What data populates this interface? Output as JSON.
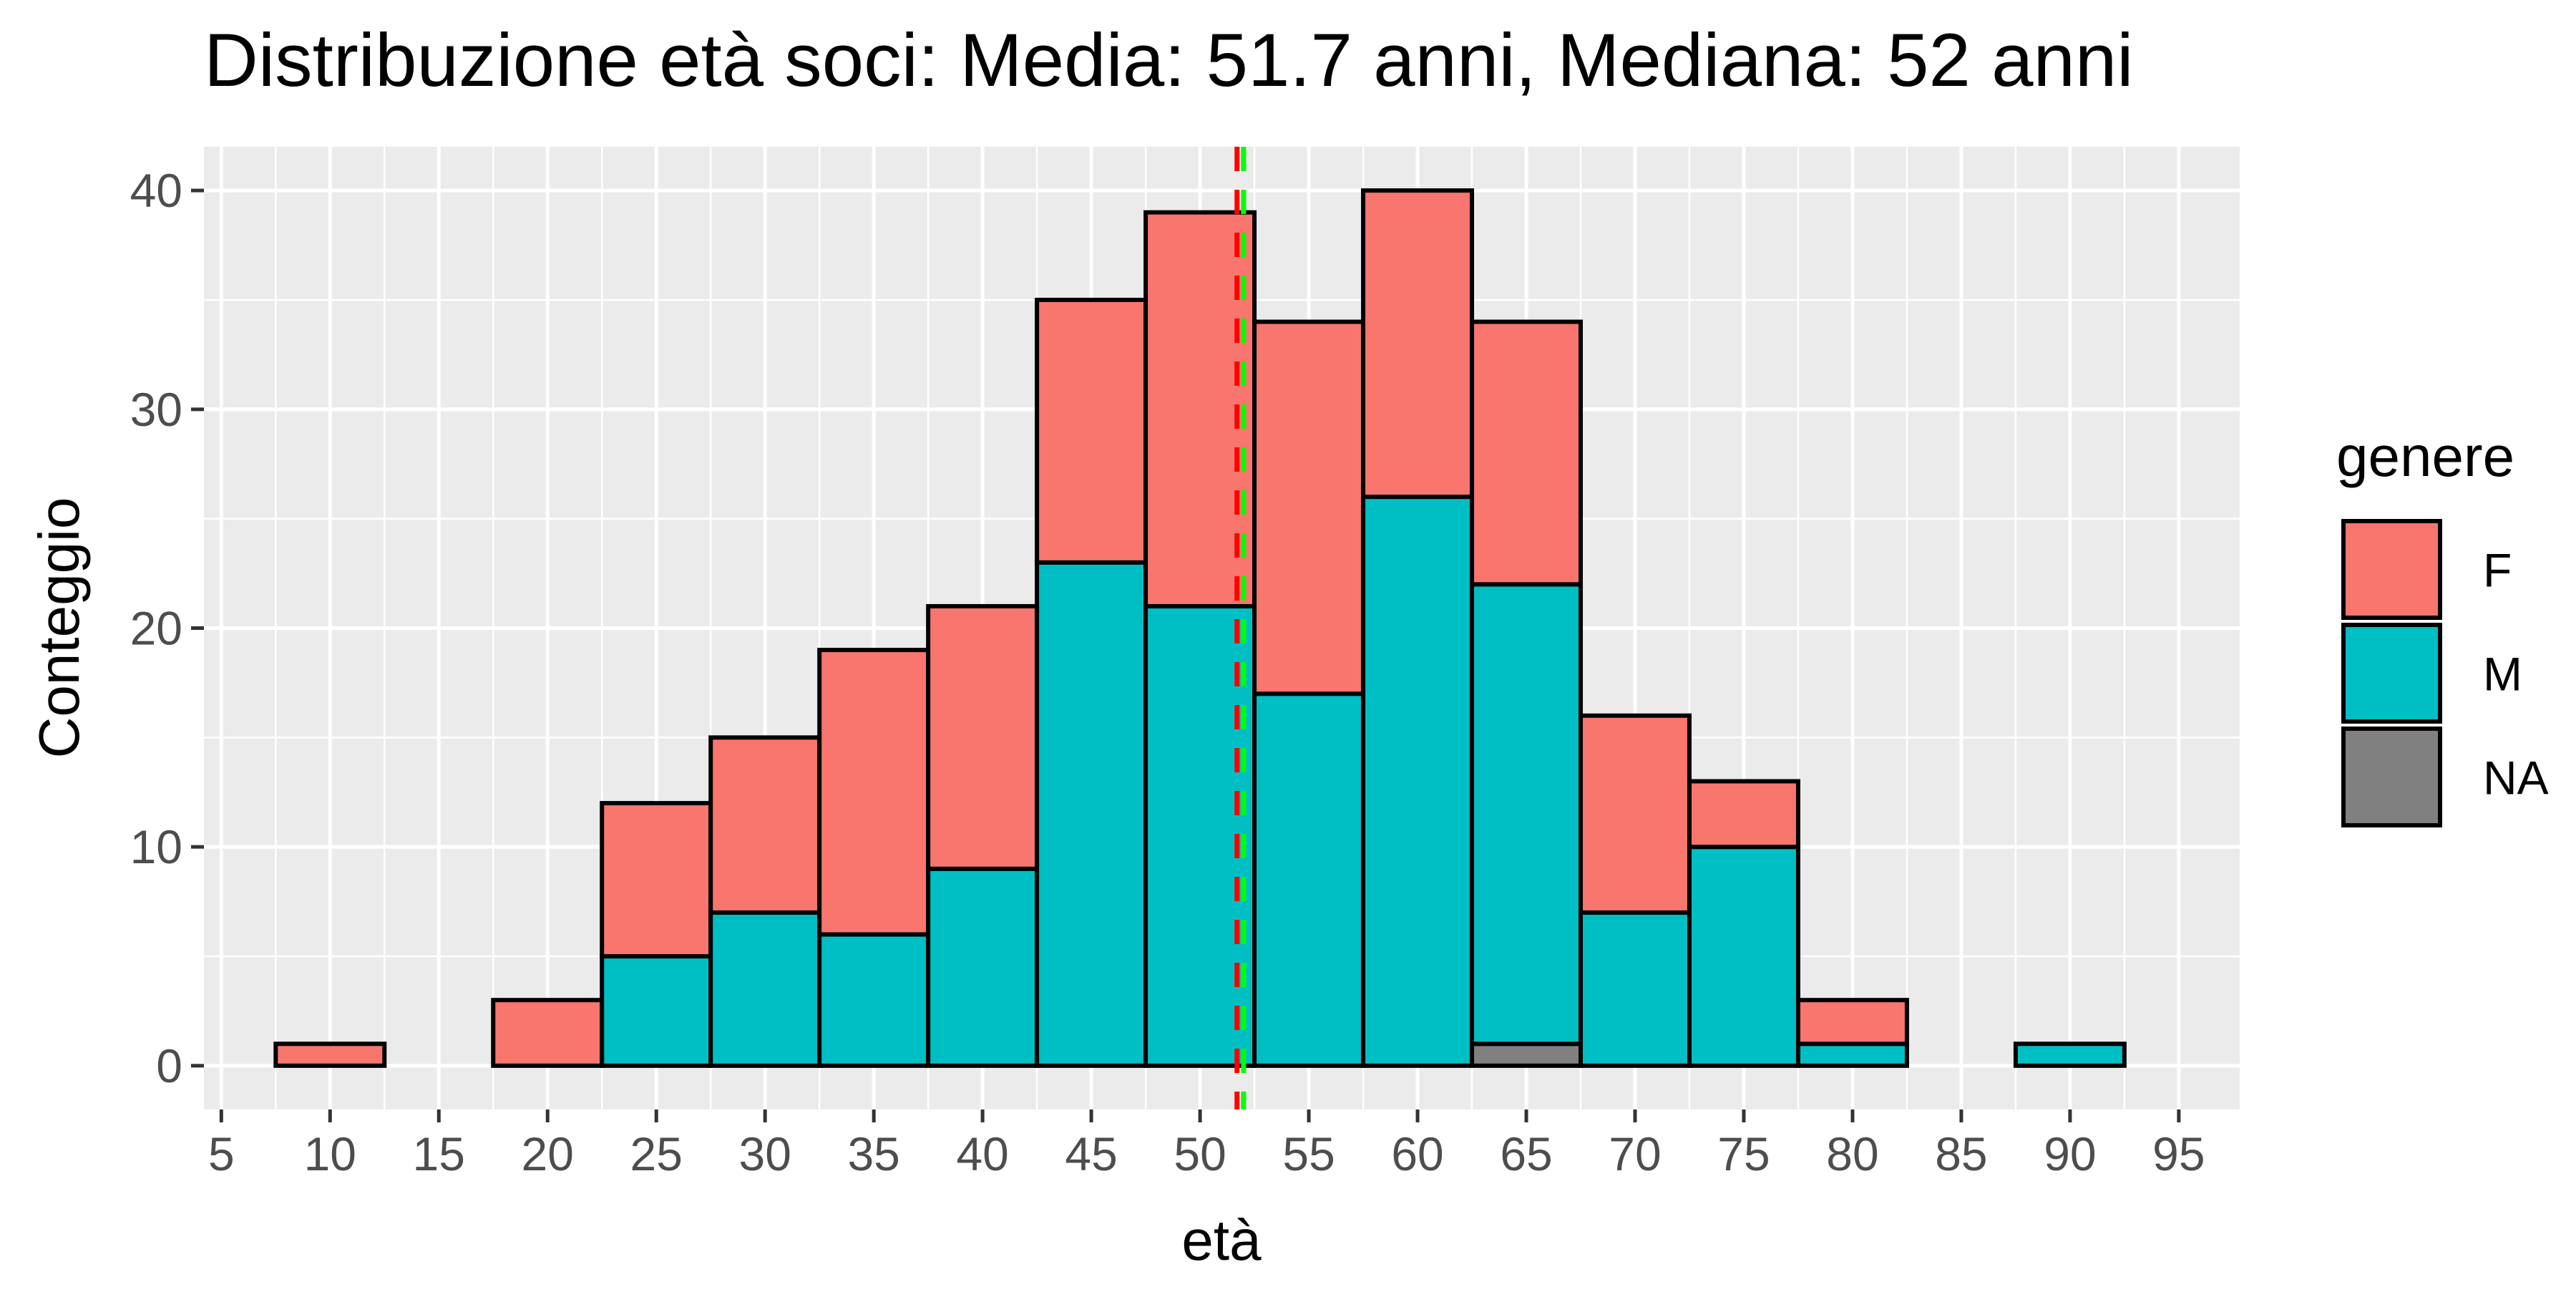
{
  "chart_data": {
    "type": "bar",
    "stacked": true,
    "title": "Distribuzione età soci: Media: 51.7 anni, Mediana: 52 anni",
    "xlabel": "età",
    "ylabel": "Conteggio",
    "xlim": [
      4.2,
      97.8
    ],
    "ylim": [
      -2,
      42
    ],
    "x_ticks": [
      5,
      10,
      15,
      20,
      25,
      30,
      35,
      40,
      45,
      50,
      55,
      60,
      65,
      70,
      75,
      80,
      85,
      90,
      95
    ],
    "y_ticks": [
      0,
      10,
      20,
      30,
      40
    ],
    "bin_width": 5,
    "bin_centers": [
      10,
      15,
      20,
      25,
      30,
      35,
      40,
      45,
      50,
      55,
      60,
      65,
      70,
      75,
      80,
      85,
      90
    ],
    "series": [
      {
        "name": "NA",
        "color": "#808080",
        "values": [
          0,
          0,
          0,
          0,
          0,
          0,
          0,
          0,
          0,
          0,
          0,
          1,
          0,
          0,
          0,
          0,
          0
        ]
      },
      {
        "name": "M",
        "color": "#00BFC4",
        "values": [
          0,
          0,
          0,
          5,
          7,
          6,
          9,
          23,
          21,
          17,
          26,
          21,
          7,
          10,
          1,
          0,
          1
        ]
      },
      {
        "name": "F",
        "color": "#F8766D",
        "values": [
          1,
          0,
          3,
          7,
          8,
          13,
          12,
          12,
          18,
          17,
          14,
          12,
          9,
          3,
          2,
          0,
          0
        ]
      }
    ],
    "reference_lines": [
      {
        "x": 51.7,
        "color": "#FF0000",
        "style": "dashed"
      },
      {
        "x": 52,
        "color": "#00FF00",
        "style": "dashed"
      }
    ],
    "legend": {
      "title": "genere",
      "placement": "right",
      "entries": [
        "F",
        "M",
        "NA"
      ]
    },
    "grid": true,
    "panel_background": "#EBEBEB",
    "bar_outline": "#000000"
  }
}
